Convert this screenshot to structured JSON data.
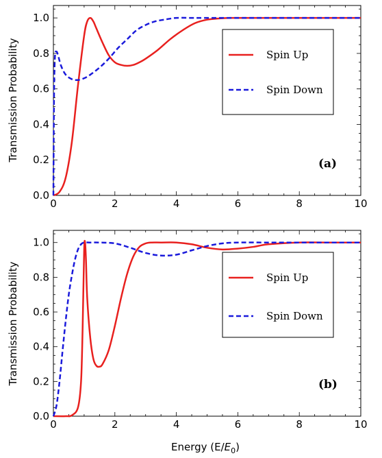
{
  "chart_data": [
    {
      "type": "line",
      "panel_label": "(a)",
      "ylabel": "Transmission Probability",
      "xlabel": "",
      "xlim": [
        0,
        10
      ],
      "ylim": [
        0,
        1.07
      ],
      "xticks": [
        "0",
        "2",
        "4",
        "6",
        "8",
        "10"
      ],
      "yticks": [
        "0.0",
        "0.2",
        "0.4",
        "0.6",
        "0.8",
        "1.0"
      ],
      "legend_position": "upper-right",
      "series": [
        {
          "name": "Spin Up",
          "color": "#e8201e",
          "style": "solid",
          "x": [
            0,
            0.2,
            0.4,
            0.6,
            0.8,
            1.0,
            1.1,
            1.2,
            1.3,
            1.4,
            1.6,
            1.8,
            2.0,
            2.2,
            2.4,
            2.6,
            2.8,
            3.0,
            3.4,
            3.8,
            4.2,
            4.6,
            5.0,
            5.4,
            5.8,
            6.2,
            7,
            8,
            9,
            10
          ],
          "y": [
            0.0,
            0.02,
            0.1,
            0.3,
            0.62,
            0.9,
            0.98,
            1.0,
            0.98,
            0.94,
            0.86,
            0.79,
            0.75,
            0.735,
            0.73,
            0.735,
            0.75,
            0.77,
            0.82,
            0.88,
            0.93,
            0.97,
            0.99,
            0.997,
            1.0,
            1.0,
            1.0,
            1.0,
            1.0,
            1.0
          ]
        },
        {
          "name": "Spin Down",
          "color": "#1a1adb",
          "style": "dashed",
          "x": [
            0,
            0.02,
            0.05,
            0.1,
            0.15,
            0.25,
            0.4,
            0.6,
            0.8,
            1.0,
            1.2,
            1.5,
            1.8,
            2.1,
            2.4,
            2.7,
            3.0,
            3.3,
            3.6,
            4.0,
            4.5,
            5,
            6,
            7,
            8,
            9,
            10
          ],
          "y": [
            0.0,
            0.55,
            0.78,
            0.81,
            0.79,
            0.73,
            0.68,
            0.655,
            0.65,
            0.66,
            0.68,
            0.72,
            0.77,
            0.83,
            0.88,
            0.93,
            0.96,
            0.98,
            0.99,
            1.0,
            1.0,
            1.0,
            1.0,
            1.0,
            1.0,
            1.0,
            1.0
          ]
        }
      ]
    },
    {
      "type": "line",
      "panel_label": "(b)",
      "ylabel": "Transmission Probability",
      "xlabel": "Energy (E/E₀)",
      "xlim": [
        0,
        10
      ],
      "ylim": [
        0,
        1.07
      ],
      "xticks": [
        "0",
        "2",
        "4",
        "6",
        "8",
        "10"
      ],
      "yticks": [
        "0.0",
        "0.2",
        "0.4",
        "0.6",
        "0.8",
        "1.0"
      ],
      "legend_position": "upper-right",
      "series": [
        {
          "name": "Spin Up",
          "color": "#e8201e",
          "style": "solid",
          "x": [
            0,
            0.4,
            0.6,
            0.8,
            0.9,
            0.95,
            1.0,
            1.03,
            1.06,
            1.1,
            1.2,
            1.3,
            1.4,
            1.5,
            1.6,
            1.8,
            2.0,
            2.2,
            2.4,
            2.6,
            2.8,
            3.0,
            3.2,
            3.5,
            4.0,
            4.5,
            5.0,
            5.5,
            6.0,
            6.5,
            7.0,
            8,
            9,
            10
          ],
          "y": [
            0.0,
            0.0,
            0.005,
            0.05,
            0.2,
            0.5,
            0.95,
            1.0,
            0.9,
            0.68,
            0.45,
            0.33,
            0.29,
            0.285,
            0.3,
            0.38,
            0.52,
            0.68,
            0.82,
            0.92,
            0.975,
            0.995,
            1.0,
            1.0,
            1.0,
            0.99,
            0.97,
            0.96,
            0.965,
            0.975,
            0.99,
            1.0,
            1.0,
            1.0
          ]
        },
        {
          "name": "Spin Down",
          "color": "#1a1adb",
          "style": "dashed",
          "x": [
            0,
            0.1,
            0.2,
            0.3,
            0.4,
            0.5,
            0.6,
            0.7,
            0.8,
            0.9,
            1.0,
            1.2,
            1.5,
            2.0,
            2.5,
            3.0,
            3.5,
            4.0,
            4.5,
            5.0,
            5.5,
            6.0,
            7.0,
            8,
            9,
            10
          ],
          "y": [
            0.0,
            0.06,
            0.2,
            0.38,
            0.55,
            0.7,
            0.81,
            0.9,
            0.96,
            0.99,
            1.0,
            1.0,
            1.0,
            0.995,
            0.97,
            0.94,
            0.925,
            0.93,
            0.955,
            0.98,
            0.995,
            1.0,
            1.0,
            1.0,
            1.0,
            1.0
          ]
        }
      ]
    }
  ]
}
